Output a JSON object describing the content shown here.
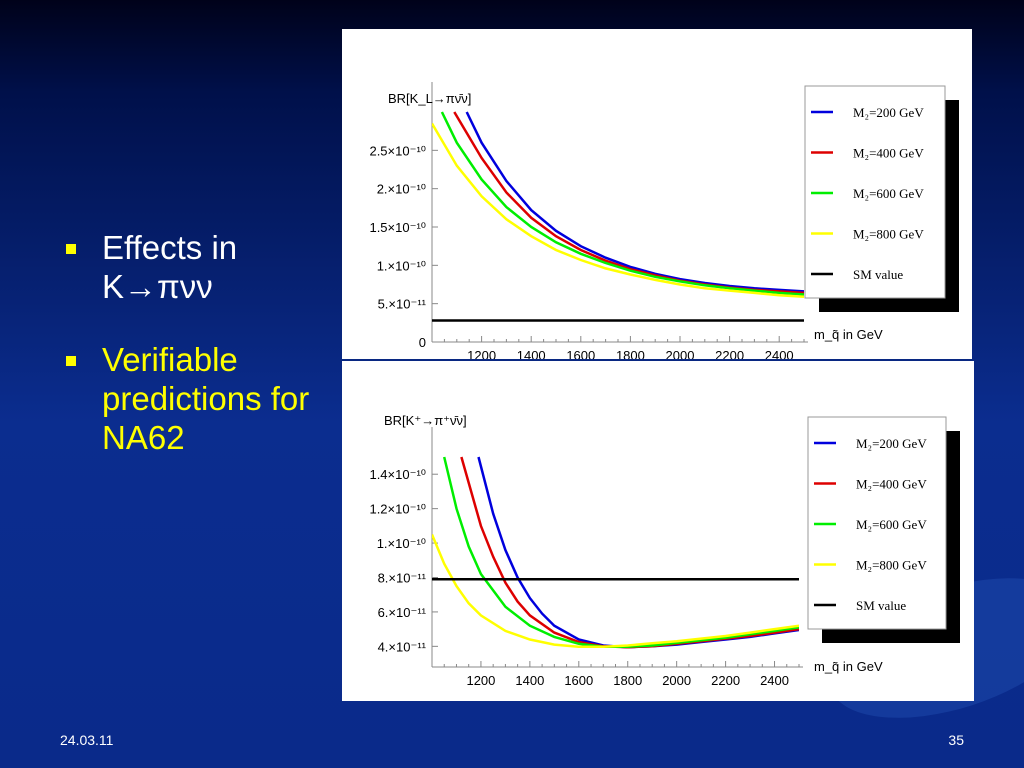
{
  "slide": {
    "bullets": [
      {
        "text": "Effects in K→πνν"
      },
      {
        "text": "Verifiable predictions for NA62"
      }
    ],
    "footer_date": "24.03.11",
    "page_number": "35",
    "colors": {
      "bullet_marker": "#ffff00",
      "bullet1_text": "#ffffff",
      "bullet2_text": "#ffff00"
    }
  },
  "chart_data": [
    {
      "type": "line",
      "ylabel": "BR[K_L→πν̄ν]",
      "xlabel": "m_q̃ in GeV",
      "xlim": [
        1000,
        2500
      ],
      "ylim": [
        0,
        3e-10
      ],
      "xticks": [
        "1200",
        "1400",
        "1600",
        "1800",
        "2000",
        "2200",
        "2400"
      ],
      "xtick_values": [
        1200,
        1400,
        1600,
        1800,
        2000,
        2200,
        2400
      ],
      "yticks": [
        "0",
        "5.×10⁻¹¹",
        "1.×10⁻¹⁰",
        "1.5×10⁻¹⁰",
        "2.×10⁻¹⁰",
        "2.5×10⁻¹⁰"
      ],
      "ytick_values": [
        0,
        5e-11,
        1e-10,
        1.5e-10,
        2e-10,
        2.5e-10
      ],
      "series": [
        {
          "name": "M₂=200 GeV",
          "color": "#0000dd",
          "x": [
            1140,
            1200,
            1300,
            1400,
            1500,
            1600,
            1700,
            1800,
            1900,
            2000,
            2100,
            2200,
            2300,
            2400,
            2500
          ],
          "values": [
            3e-10,
            2.6e-10,
            2.1e-10,
            1.72e-10,
            1.45e-10,
            1.25e-10,
            1.1e-10,
            9.8e-11,
            8.9e-11,
            8.2e-11,
            7.7e-11,
            7.3e-11,
            7e-11,
            6.8e-11,
            6.6e-11
          ]
        },
        {
          "name": "M₂=400 GeV",
          "color": "#dd0000",
          "x": [
            1090,
            1200,
            1300,
            1400,
            1500,
            1600,
            1700,
            1800,
            1900,
            2000,
            2100,
            2200,
            2300,
            2400,
            2500
          ],
          "values": [
            3e-10,
            2.4e-10,
            1.95e-10,
            1.62e-10,
            1.38e-10,
            1.2e-10,
            1.06e-10,
            9.5e-11,
            8.7e-11,
            8e-11,
            7.5e-11,
            7.1e-11,
            6.8e-11,
            6.6e-11,
            6.4e-11
          ]
        },
        {
          "name": "M₂=600 GeV",
          "color": "#00ee00",
          "x": [
            1040,
            1100,
            1200,
            1300,
            1400,
            1500,
            1600,
            1700,
            1800,
            1900,
            2000,
            2100,
            2200,
            2300,
            2400,
            2500
          ],
          "values": [
            3e-10,
            2.6e-10,
            2.12e-10,
            1.76e-10,
            1.5e-10,
            1.3e-10,
            1.15e-10,
            1.03e-10,
            9.3e-11,
            8.5e-11,
            7.9e-11,
            7.4e-11,
            7e-11,
            6.7e-11,
            6.4e-11,
            6.2e-11
          ]
        },
        {
          "name": "M₂=800 GeV",
          "color": "#ffff00",
          "x": [
            1000,
            1100,
            1200,
            1300,
            1400,
            1500,
            1600,
            1700,
            1800,
            1900,
            2000,
            2100,
            2200,
            2300,
            2400,
            2500
          ],
          "values": [
            2.85e-10,
            2.3e-10,
            1.9e-10,
            1.6e-10,
            1.38e-10,
            1.2e-10,
            1.07e-10,
            9.6e-11,
            8.8e-11,
            8.1e-11,
            7.5e-11,
            7e-11,
            6.7e-11,
            6.4e-11,
            6.1e-11,
            5.9e-11
          ]
        },
        {
          "name": "SM value",
          "color": "#000000",
          "x": [
            1000,
            2500
          ],
          "values": [
            2.8e-11,
            2.8e-11
          ]
        }
      ]
    },
    {
      "type": "line",
      "ylabel": "BR[K⁺→π⁺ν̄ν]",
      "xlabel": "m_q̃ in GeV",
      "xlim": [
        1000,
        2500
      ],
      "ylim": [
        2.8e-11,
        1.5e-10
      ],
      "xticks": [
        "1200",
        "1400",
        "1600",
        "1800",
        "2000",
        "2200",
        "2400"
      ],
      "xtick_values": [
        1200,
        1400,
        1600,
        1800,
        2000,
        2200,
        2400
      ],
      "yticks": [
        "4.×10⁻¹¹",
        "6.×10⁻¹¹",
        "8.×10⁻¹¹",
        "1.×10⁻¹⁰",
        "1.2×10⁻¹⁰",
        "1.4×10⁻¹⁰"
      ],
      "ytick_values": [
        4e-11,
        6e-11,
        8e-11,
        1e-10,
        1.2e-10,
        1.4e-10
      ],
      "series": [
        {
          "name": "M₂=200 GeV",
          "color": "#0000dd",
          "x": [
            1190,
            1250,
            1300,
            1350,
            1400,
            1450,
            1500,
            1600,
            1700,
            1800,
            1900,
            2000,
            2100,
            2200,
            2300,
            2400,
            2500
          ],
          "values": [
            1.5e-10,
            1.17e-10,
            9.6e-11,
            8e-11,
            6.8e-11,
            5.9e-11,
            5.2e-11,
            4.4e-11,
            4.05e-11,
            3.95e-11,
            4e-11,
            4.1e-11,
            4.25e-11,
            4.4e-11,
            4.55e-11,
            4.75e-11,
            4.95e-11
          ]
        },
        {
          "name": "M₂=400 GeV",
          "color": "#dd0000",
          "x": [
            1120,
            1200,
            1250,
            1300,
            1350,
            1400,
            1500,
            1600,
            1700,
            1800,
            1900,
            2000,
            2100,
            2200,
            2300,
            2400,
            2500
          ],
          "values": [
            1.5e-10,
            1.1e-10,
            9.2e-11,
            7.7e-11,
            6.6e-11,
            5.8e-11,
            4.8e-11,
            4.25e-11,
            4e-11,
            3.95e-11,
            4e-11,
            4.15e-11,
            4.3e-11,
            4.45e-11,
            4.6e-11,
            4.8e-11,
            5e-11
          ]
        },
        {
          "name": "M₂=600 GeV",
          "color": "#00ee00",
          "x": [
            1050,
            1100,
            1150,
            1200,
            1300,
            1400,
            1500,
            1600,
            1700,
            1800,
            1900,
            2000,
            2100,
            2200,
            2300,
            2400,
            2500
          ],
          "values": [
            1.5e-10,
            1.2e-10,
            9.8e-11,
            8.2e-11,
            6.3e-11,
            5.2e-11,
            4.55e-11,
            4.15e-11,
            3.98e-11,
            3.98e-11,
            4.05e-11,
            4.2e-11,
            4.35e-11,
            4.5e-11,
            4.7e-11,
            4.9e-11,
            5.1e-11
          ]
        },
        {
          "name": "M₂=800 GeV",
          "color": "#ffff00",
          "x": [
            1000,
            1050,
            1100,
            1150,
            1200,
            1300,
            1400,
            1500,
            1600,
            1700,
            1800,
            1900,
            2000,
            2100,
            2200,
            2300,
            2400,
            2500
          ],
          "values": [
            1.05e-10,
            8.8e-11,
            7.5e-11,
            6.5e-11,
            5.8e-11,
            4.9e-11,
            4.4e-11,
            4.1e-11,
            3.98e-11,
            3.98e-11,
            4.05e-11,
            4.18e-11,
            4.3e-11,
            4.45e-11,
            4.6e-11,
            4.8e-11,
            5e-11,
            5.2e-11
          ]
        },
        {
          "name": "SM value",
          "color": "#000000",
          "x": [
            1000,
            2500
          ],
          "values": [
            7.9e-11,
            7.9e-11
          ]
        }
      ]
    }
  ]
}
